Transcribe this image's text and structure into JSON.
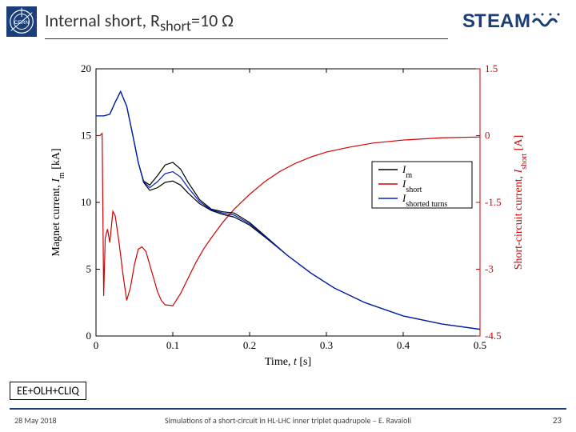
{
  "header": {
    "title_prefix": "Internal short, R",
    "title_sub": "short",
    "title_suffix": "=10 Ω"
  },
  "chart": {
    "type": "line",
    "background_color": "#ffffff",
    "xlim": [
      0,
      0.5
    ],
    "ylim_left": [
      0,
      20
    ],
    "ylim_right": [
      -4.5,
      1.5
    ],
    "xticks": [
      0,
      0.1,
      0.2,
      0.3,
      0.4,
      0.5
    ],
    "yticks_left": [
      0,
      5,
      10,
      15,
      20
    ],
    "yticks_right": [
      -4.5,
      -3,
      -1.5,
      0,
      1.5
    ],
    "xlabel_prefix": "Time, ",
    "xlabel_var": "t",
    "xlabel_unit": " [s]",
    "ylabel_left_prefix": "Magnet current, ",
    "ylabel_left_var": "I",
    "ylabel_left_sub": "m",
    "ylabel_left_unit": " [kA]",
    "ylabel_right_prefix": "Short-circuit current, ",
    "ylabel_right_var": "I",
    "ylabel_right_sub": "short",
    "ylabel_right_unit": " [A]",
    "legend": {
      "items": [
        {
          "label_var": "I",
          "label_sub": "m",
          "color": "#000000"
        },
        {
          "label_var": "I",
          "label_sub": "short",
          "color": "#d00000"
        },
        {
          "label_var": "I",
          "label_sub": "shorted turns",
          "color": "#0020c0"
        }
      ]
    },
    "colors": {
      "axis": "#000000",
      "right_axis": "#d00000",
      "series_Im1": "#000000",
      "series_Im2": "#000000",
      "series_Ishort": "#d00000",
      "series_Ishorted": "#0020c0"
    },
    "series": {
      "Im1": [
        [
          0,
          16.47
        ],
        [
          0.005,
          16.47
        ],
        [
          0.01,
          16.47
        ],
        [
          0.018,
          16.6
        ],
        [
          0.025,
          17.5
        ],
        [
          0.032,
          18.3
        ],
        [
          0.04,
          17.2
        ],
        [
          0.048,
          15.0
        ],
        [
          0.055,
          13.0
        ],
        [
          0.062,
          11.6
        ],
        [
          0.07,
          11.3
        ],
        [
          0.08,
          12.0
        ],
        [
          0.09,
          12.8
        ],
        [
          0.1,
          13.0
        ],
        [
          0.11,
          12.5
        ],
        [
          0.12,
          11.5
        ],
        [
          0.135,
          10.2
        ],
        [
          0.15,
          9.5
        ],
        [
          0.165,
          9.3
        ],
        [
          0.18,
          9.2
        ],
        [
          0.2,
          8.5
        ],
        [
          0.22,
          7.5
        ],
        [
          0.25,
          6.0
        ],
        [
          0.28,
          4.7
        ],
        [
          0.31,
          3.6
        ],
        [
          0.35,
          2.5
        ],
        [
          0.4,
          1.5
        ],
        [
          0.45,
          0.9
        ],
        [
          0.5,
          0.5
        ]
      ],
      "Im2": [
        [
          0,
          16.47
        ],
        [
          0.005,
          16.47
        ],
        [
          0.01,
          16.47
        ],
        [
          0.018,
          16.6
        ],
        [
          0.025,
          17.5
        ],
        [
          0.032,
          18.3
        ],
        [
          0.04,
          17.2
        ],
        [
          0.048,
          15.0
        ],
        [
          0.055,
          13.0
        ],
        [
          0.062,
          11.5
        ],
        [
          0.07,
          10.9
        ],
        [
          0.08,
          11.1
        ],
        [
          0.09,
          11.5
        ],
        [
          0.1,
          11.6
        ],
        [
          0.11,
          11.3
        ],
        [
          0.12,
          10.7
        ],
        [
          0.135,
          9.9
        ],
        [
          0.15,
          9.4
        ],
        [
          0.165,
          9.1
        ],
        [
          0.18,
          8.9
        ],
        [
          0.2,
          8.3
        ],
        [
          0.22,
          7.4
        ],
        [
          0.25,
          6.0
        ],
        [
          0.28,
          4.7
        ],
        [
          0.31,
          3.6
        ],
        [
          0.35,
          2.5
        ],
        [
          0.4,
          1.5
        ],
        [
          0.45,
          0.9
        ],
        [
          0.5,
          0.5
        ]
      ],
      "Ishort": [
        [
          0,
          0.0
        ],
        [
          0.005,
          0.0
        ],
        [
          0.008,
          0.05
        ],
        [
          0.01,
          -3.6
        ],
        [
          0.012,
          -2.3
        ],
        [
          0.015,
          -2.1
        ],
        [
          0.018,
          -2.4
        ],
        [
          0.022,
          -1.7
        ],
        [
          0.025,
          -1.8
        ],
        [
          0.03,
          -2.4
        ],
        [
          0.035,
          -3.1
        ],
        [
          0.04,
          -3.7
        ],
        [
          0.045,
          -3.4
        ],
        [
          0.05,
          -2.9
        ],
        [
          0.055,
          -2.55
        ],
        [
          0.06,
          -2.5
        ],
        [
          0.065,
          -2.6
        ],
        [
          0.07,
          -2.9
        ],
        [
          0.075,
          -3.2
        ],
        [
          0.08,
          -3.5
        ],
        [
          0.085,
          -3.7
        ],
        [
          0.09,
          -3.8
        ],
        [
          0.1,
          -3.82
        ],
        [
          0.11,
          -3.55
        ],
        [
          0.12,
          -3.2
        ],
        [
          0.13,
          -2.85
        ],
        [
          0.14,
          -2.55
        ],
        [
          0.15,
          -2.3
        ],
        [
          0.165,
          -1.95
        ],
        [
          0.18,
          -1.65
        ],
        [
          0.2,
          -1.32
        ],
        [
          0.22,
          -1.03
        ],
        [
          0.24,
          -0.8
        ],
        [
          0.26,
          -0.62
        ],
        [
          0.28,
          -0.48
        ],
        [
          0.3,
          -0.37
        ],
        [
          0.33,
          -0.26
        ],
        [
          0.36,
          -0.17
        ],
        [
          0.4,
          -0.1
        ],
        [
          0.45,
          -0.05
        ],
        [
          0.5,
          -0.03
        ]
      ],
      "Ishorted_turns": [
        [
          0,
          16.47
        ],
        [
          0.005,
          16.47
        ],
        [
          0.01,
          16.47
        ],
        [
          0.018,
          16.6
        ],
        [
          0.025,
          17.5
        ],
        [
          0.032,
          18.3
        ],
        [
          0.04,
          17.2
        ],
        [
          0.048,
          15.0
        ],
        [
          0.055,
          13.0
        ],
        [
          0.062,
          11.55
        ],
        [
          0.07,
          11.1
        ],
        [
          0.08,
          11.55
        ],
        [
          0.09,
          12.15
        ],
        [
          0.1,
          12.3
        ],
        [
          0.11,
          11.9
        ],
        [
          0.12,
          11.1
        ],
        [
          0.135,
          10.05
        ],
        [
          0.15,
          9.45
        ],
        [
          0.165,
          9.2
        ],
        [
          0.18,
          9.05
        ],
        [
          0.2,
          8.4
        ],
        [
          0.22,
          7.45
        ],
        [
          0.25,
          6.0
        ],
        [
          0.28,
          4.7
        ],
        [
          0.31,
          3.6
        ],
        [
          0.35,
          2.5
        ],
        [
          0.4,
          1.5
        ],
        [
          0.45,
          0.9
        ],
        [
          0.5,
          0.5
        ]
      ]
    }
  },
  "annotation": {
    "label": "EE+OLH+CLIQ"
  },
  "footer": {
    "date": "28 May 2018",
    "caption": "Simulations of a short-circuit in HL-LHC inner triplet quadrupole – E. Ravaioli",
    "page": "23"
  }
}
